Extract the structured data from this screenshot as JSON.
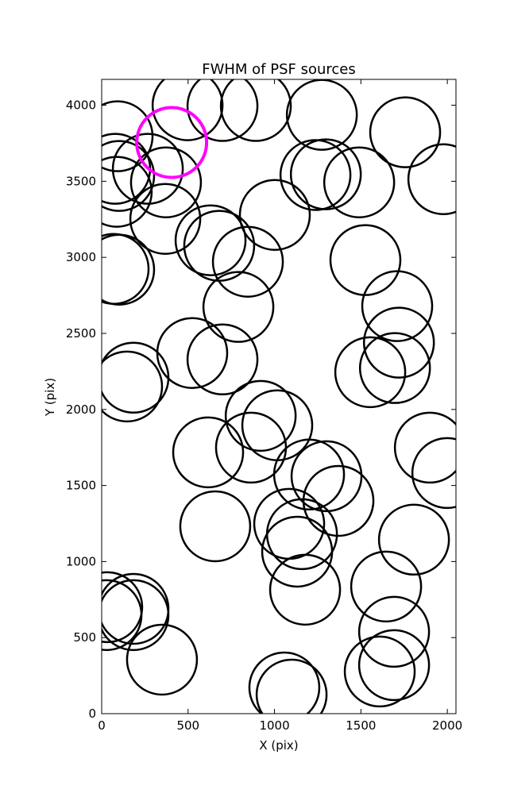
{
  "chart_data": {
    "type": "scatter",
    "title": "FWHM of PSF sources",
    "x_label": "X (pix)",
    "y_label": "Y (pix)",
    "xlim": [
      0,
      2050
    ],
    "ylim": [
      0,
      4170
    ],
    "xticks": [
      0,
      500,
      1000,
      1500,
      2000
    ],
    "yticks": [
      0,
      500,
      1000,
      1500,
      2000,
      2500,
      3000,
      3500,
      4000
    ],
    "series": [
      {
        "color": "#000000",
        "x": [
          497,
          699,
          892,
          1274,
          1756,
          92,
          78,
          267,
          101,
          372,
          87,
          368,
          1977,
          1297,
          1237,
          1490,
          630,
          680,
          846,
          1002,
          1526,
          69,
          101,
          791,
          1710,
          1720,
          524,
          699,
          184,
          147,
          1554,
          1697,
          920,
          1016,
          616,
          864,
          1899,
          2000,
          1200,
          1301,
          1370,
          1085,
          657,
          1159,
          1131,
          1807,
          1646,
          1177,
          32,
          28,
          184,
          184,
          349,
          1692,
          1692,
          1057,
          1099,
          1609
        ],
        "values": [
          4000,
          3995,
          3995,
          3937,
          3822,
          3796,
          3582,
          3582,
          3535,
          3493,
          3431,
          3253,
          3514,
          3546,
          3541,
          3493,
          3112,
          3076,
          2971,
          3279,
          2982,
          2924,
          2919,
          2674,
          2679,
          2439,
          2371,
          2329,
          2209,
          2151,
          2245,
          2272,
          1958,
          1896,
          1718,
          1749,
          1749,
          1582,
          1572,
          1561,
          1399,
          1248,
          1232,
          1180,
          1065,
          1144,
          836,
          815,
          700,
          648,
          689,
          648,
          355,
          538,
          319,
          172,
          125,
          277
        ]
      },
      {
        "color": "#ff00ff",
        "x": [
          405
        ],
        "values": [
          3755
        ]
      }
    ]
  }
}
